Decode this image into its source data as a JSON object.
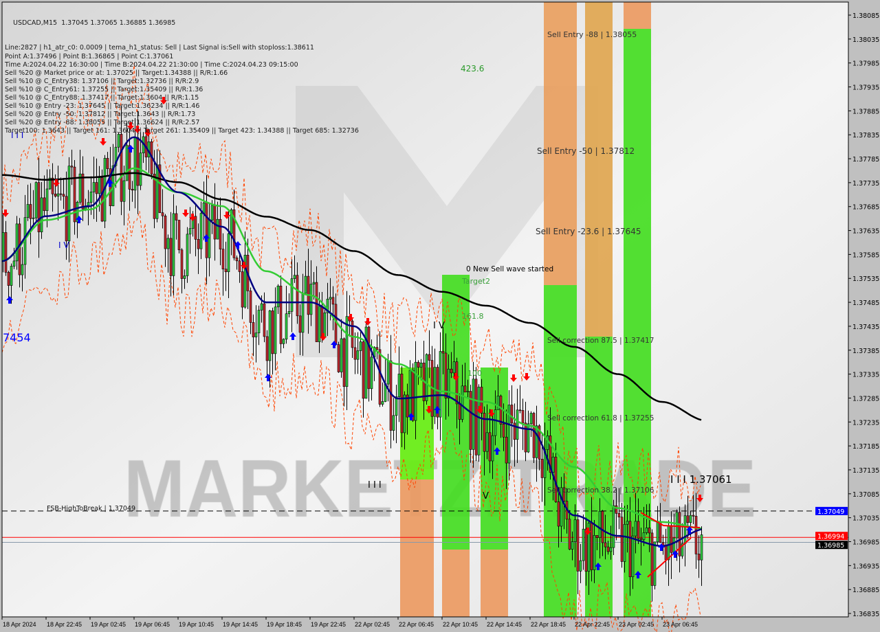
{
  "chart_data": {
    "type": "candlestick",
    "title": "USDCAD,M15",
    "ohlc_header": "1.37045 1.37065 1.36885 1.36985",
    "info_lines": [
      "Line:2827 | h1_atr_c0: 0.0009 | tema_h1_status: Sell | Last Signal is:Sell with stoploss:1.38611",
      "Point A:1.37496 | Point B:1.36865 | Point C:1.37061",
      "Time A:2024.04.22 16:30:00 | Time B:2024.04.22 21:30:00 | Time C:2024.04.23 09:15:00",
      "Sell %20 @ Market price or at: 1.37025 || Target:1.34388 || R/R:1.66",
      "Sell %10 @ C_Entry38: 1.37106 || Target:1.32736 || R/R:2.9",
      "Sell %10 @ C_Entry61: 1.37255 || Target:1.35409 || R/R:1.36",
      "Sell %10 @ C_Entry88: 1.37417 || Target:1.3604 || R/R:1.15",
      "Sell %10 @ Entry -23: 1.37645 || Target:1.36234 || R/R:1.46",
      "Sell %20 @ Entry -50: 1.37812 || Target:1.3643 || R/R:1.73",
      "Sell %20 @ Entry -88: 1.38055 || Target:1.36624 || R/R:2.57",
      "Target100: 1.3643 || Target 161: 1.3604 || Target 261: 1.35409 || Target 423: 1.34388 || Target 685: 1.32736"
    ],
    "y_axis": {
      "ylim": [
        1.36835,
        1.38085
      ],
      "ticks": [
        "1.38085",
        "1.38035",
        "1.37985",
        "1.37935",
        "1.37885",
        "1.37835",
        "1.37785",
        "1.37735",
        "1.37685",
        "1.37635",
        "1.37585",
        "1.37535",
        "1.37485",
        "1.37435",
        "1.37385",
        "1.37335",
        "1.37285",
        "1.37235",
        "1.37185",
        "1.37135",
        "1.37085",
        "1.37035",
        "1.36985",
        "1.36935",
        "1.36885",
        "1.36835"
      ]
    },
    "x_axis": {
      "ticks": [
        "18 Apr 2024",
        "18 Apr 22:45",
        "19 Apr 02:45",
        "19 Apr 06:45",
        "19 Apr 10:45",
        "19 Apr 14:45",
        "19 Apr 18:45",
        "19 Apr 22:45",
        "22 Apr 02:45",
        "22 Apr 06:45",
        "22 Apr 10:45",
        "22 Apr 14:45",
        "22 Apr 18:45",
        "22 Apr 22:45",
        "23 Apr 02:45",
        "23 Apr 06:45"
      ]
    },
    "price_path_at_ticks": [
      1.37571,
      1.37672,
      1.37715,
      1.37786,
      1.376,
      1.37629,
      1.37442,
      1.37485,
      1.3737,
      1.37284,
      1.37313,
      1.37227,
      1.37227,
      1.36983,
      1.36983,
      1.36968,
      1.36985
    ],
    "ma_slow_black": [
      1.37751,
      1.37741,
      1.37746,
      1.37755,
      1.37736,
      1.377,
      1.37664,
      1.37636,
      1.37592,
      1.37542,
      1.37507,
      1.37478,
      1.37442,
      1.37392,
      1.37335,
      1.37277,
      1.37238
    ],
    "ma_green": [
      1.37571,
      1.37657,
      1.37679,
      1.37765,
      1.37715,
      1.37686,
      1.3755,
      1.375,
      1.37413,
      1.37356,
      1.37299,
      1.37277,
      1.37227,
      1.37141,
      1.37055,
      1.37026,
      1.37012
    ],
    "ma_navy": [
      1.37571,
      1.37665,
      1.37686,
      1.3783,
      1.37715,
      1.37643,
      1.37485,
      1.37485,
      1.37435,
      1.37284,
      1.37291,
      1.37241,
      1.3722,
      1.3704,
      1.36997,
      1.36976,
      1.37012
    ],
    "price_tags": [
      {
        "label": "1.37049",
        "value": 1.37049,
        "color": "#0000ff"
      },
      {
        "label": "1.36994",
        "value": 1.36994,
        "color": "#ff0000"
      },
      {
        "label": "1.36985",
        "value": 1.36985,
        "color": "#000000"
      }
    ],
    "levels": {
      "fsb_high_to_break": {
        "label": "FSB-HighToBreak | 1.37049",
        "value": 1.37049
      },
      "current_red": 1.36994
    },
    "annotations": {
      "sell_entry_88": "Sell Entry -88 | 1.38055",
      "sell_entry_50": "Sell Entry -50 | 1.37812",
      "sell_entry_23": "Sell Entry -23.6 | 1.37645",
      "fib_423": "423.6",
      "new_wave": "0 New Sell wave started",
      "target2": "Target2",
      "fib_161": "161.8",
      "fib_100": "100",
      "wave_iv": "I V",
      "wave_v": "V",
      "wave_iii": "I I I",
      "corr_875": "Sell correction 87.5 | 1.37417",
      "corr_618": "Sell correction 61.8 | 1.37255",
      "corr_382": "Sell correction 38.2 | 1.37106",
      "point_c": "I I I 1.37061",
      "left_iii": "I I I",
      "left_iv": "I V",
      "left_num": "7454"
    },
    "watermark": "MARKETZITRADE",
    "colors": {
      "bull": "#2ecc40",
      "bear": "#c0282d",
      "zone_green": "#44dd22",
      "zone_orange": "#eb9a62",
      "ma_green": "#33cc33",
      "ma_navy": "#000080",
      "ma_black": "#000000"
    }
  }
}
